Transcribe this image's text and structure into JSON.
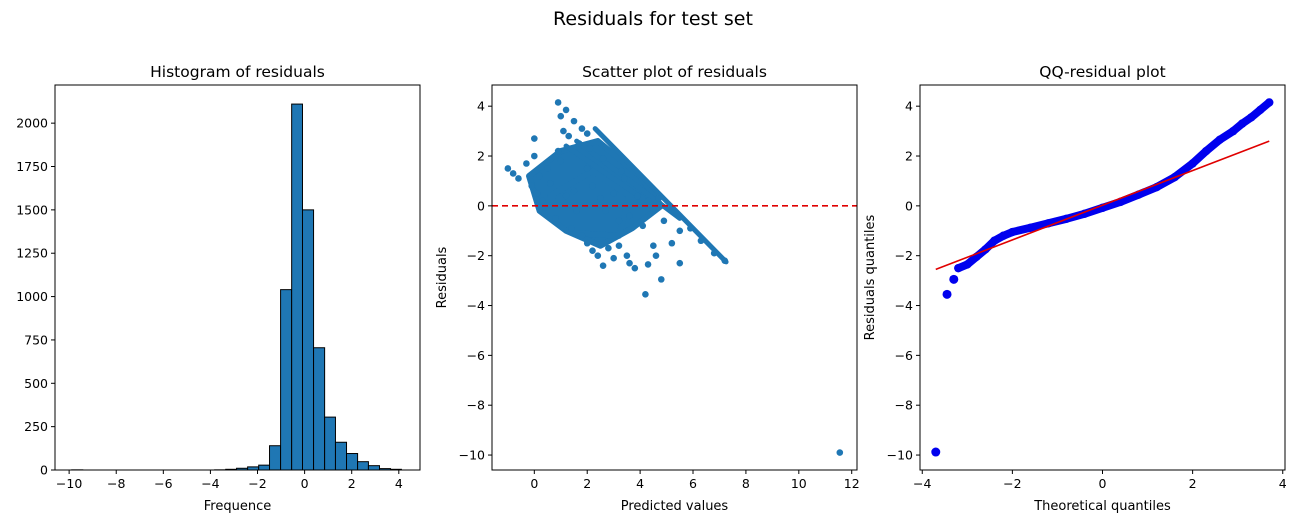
{
  "figure": {
    "suptitle": "Residuals for test set"
  },
  "colors": {
    "bar": "#1f77b4",
    "edge": "#000000",
    "scatter": "#1f77b4",
    "refline": "#e00000",
    "qq_points": "#0000ee"
  },
  "chart_data": [
    {
      "type": "bar",
      "title": "Histogram of residuals",
      "xlabel": "Frequence",
      "ylabel": "",
      "xlim": [
        -10.6,
        4.9
      ],
      "ylim": [
        0,
        2220
      ],
      "xticks": [
        -10,
        -8,
        -6,
        -4,
        -2,
        0,
        2,
        4
      ],
      "yticks": [
        0,
        250,
        500,
        750,
        1000,
        1250,
        1500,
        1750,
        2000
      ],
      "bins": [
        [
          -9.89,
          -9.42,
          1
        ],
        [
          -9.42,
          -8.95,
          0
        ],
        [
          -8.95,
          -8.49,
          0
        ],
        [
          -8.49,
          -8.02,
          0
        ],
        [
          -8.02,
          -7.55,
          0
        ],
        [
          -7.55,
          -7.09,
          0
        ],
        [
          -7.09,
          -6.62,
          0
        ],
        [
          -6.62,
          -6.15,
          0
        ],
        [
          -6.15,
          -5.69,
          0
        ],
        [
          -5.69,
          -5.22,
          0
        ],
        [
          -5.22,
          -4.75,
          0
        ],
        [
          -4.75,
          -4.29,
          0
        ],
        [
          -4.29,
          -3.82,
          0
        ],
        [
          -3.82,
          -3.35,
          1
        ],
        [
          -3.35,
          -2.89,
          4
        ],
        [
          -2.89,
          -2.42,
          10
        ],
        [
          -2.42,
          -1.95,
          18
        ],
        [
          -1.95,
          -1.49,
          28
        ],
        [
          -1.49,
          -1.02,
          140
        ],
        [
          -1.02,
          -0.55,
          1040
        ],
        [
          -0.55,
          -0.09,
          2110
        ],
        [
          -0.09,
          0.38,
          1500
        ],
        [
          0.38,
          0.85,
          705
        ],
        [
          0.85,
          1.31,
          305
        ],
        [
          1.31,
          1.78,
          160
        ],
        [
          1.78,
          2.25,
          95
        ],
        [
          2.25,
          2.71,
          48
        ],
        [
          2.71,
          3.18,
          25
        ],
        [
          3.18,
          3.65,
          8
        ],
        [
          3.65,
          4.11,
          4
        ]
      ]
    },
    {
      "type": "scatter",
      "title": "Scatter plot of residuals",
      "xlabel": "Predicted values",
      "ylabel": "Residuals",
      "xlim": [
        -1.6,
        12.2
      ],
      "ylim": [
        -10.6,
        4.85
      ],
      "xticks": [
        0,
        2,
        4,
        6,
        8,
        10,
        12
      ],
      "yticks": [
        -10,
        -8,
        -6,
        -4,
        -2,
        0,
        2,
        4
      ],
      "hline": 0,
      "points": [
        [
          -1.0,
          1.5
        ],
        [
          -0.8,
          1.3
        ],
        [
          -0.6,
          1.1
        ],
        [
          -0.3,
          1.7
        ],
        [
          -0.1,
          0.8
        ],
        [
          0.1,
          0.5
        ],
        [
          0.2,
          1.2
        ],
        [
          0.0,
          2.0
        ],
        [
          0.0,
          2.7
        ],
        [
          0.3,
          0.2
        ],
        [
          0.4,
          -0.3
        ],
        [
          0.5,
          1.5
        ],
        [
          0.6,
          0.9
        ],
        [
          0.8,
          -0.5
        ],
        [
          0.9,
          2.2
        ],
        [
          1.0,
          1.8
        ],
        [
          0.9,
          4.15
        ],
        [
          1.0,
          3.6
        ],
        [
          1.1,
          3.0
        ],
        [
          1.2,
          3.85
        ],
        [
          1.3,
          2.8
        ],
        [
          1.5,
          3.4
        ],
        [
          1.7,
          2.5
        ],
        [
          1.8,
          3.1
        ],
        [
          2.0,
          2.9
        ],
        [
          1.5,
          0.6
        ],
        [
          1.6,
          -0.2
        ],
        [
          1.8,
          -1.2
        ],
        [
          2.0,
          -1.5
        ],
        [
          2.2,
          -1.8
        ],
        [
          2.4,
          -2.0
        ],
        [
          2.6,
          -2.4
        ],
        [
          2.8,
          -1.7
        ],
        [
          3.0,
          -2.1
        ],
        [
          3.2,
          -1.6
        ],
        [
          3.5,
          -2.0
        ],
        [
          3.6,
          -2.3
        ],
        [
          3.8,
          -2.5
        ],
        [
          4.2,
          -3.55
        ],
        [
          4.3,
          -2.35
        ],
        [
          4.5,
          -1.6
        ],
        [
          4.6,
          -2.0
        ],
        [
          4.8,
          -2.95
        ],
        [
          5.2,
          -1.5
        ],
        [
          5.5,
          -1.0
        ],
        [
          5.5,
          -2.3
        ],
        [
          5.9,
          -0.9
        ],
        [
          6.3,
          -1.4
        ],
        [
          6.8,
          -1.9
        ],
        [
          7.2,
          -2.2
        ],
        [
          11.55,
          -9.9
        ],
        [
          2.0,
          1.5
        ],
        [
          2.2,
          0.8
        ],
        [
          2.5,
          0.3
        ],
        [
          2.7,
          -0.2
        ],
        [
          3.0,
          0.5
        ],
        [
          3.2,
          -0.6
        ],
        [
          3.4,
          1.1
        ],
        [
          3.6,
          -0.4
        ],
        [
          3.9,
          0.4
        ],
        [
          4.1,
          -0.8
        ],
        [
          4.3,
          0.2
        ],
        [
          4.5,
          -0.1
        ],
        [
          4.7,
          0.3
        ],
        [
          4.9,
          -0.6
        ],
        [
          1.2,
          0.4
        ],
        [
          1.4,
          -0.9
        ],
        [
          2.1,
          2.3
        ],
        [
          2.6,
          1.9
        ],
        [
          3.3,
          1.4
        ]
      ],
      "ridges": [
        [
          [
            2.3,
            3.1
          ],
          [
            7.25,
            -2.25
          ]
        ],
        [
          [
            1.6,
            2.6
          ],
          [
            5.5,
            -0.5
          ]
        ],
        [
          [
            1.2,
            2.4
          ],
          [
            4.5,
            0.0
          ]
        ]
      ],
      "core_clusters": [
        [
          [
            -0.2,
            1.2
          ],
          [
            1.0,
            2.2
          ],
          [
            2.4,
            2.6
          ],
          [
            4.0,
            1.2
          ],
          [
            4.8,
            0.0
          ],
          [
            3.7,
            -0.9
          ],
          [
            2.5,
            -1.6
          ],
          [
            1.2,
            -1.0
          ],
          [
            0.2,
            -0.2
          ]
        ],
        [
          [
            0.6,
            0.4
          ],
          [
            2.2,
            1.4
          ],
          [
            3.6,
            0.4
          ],
          [
            3.2,
            -1.2
          ],
          [
            1.6,
            -1.1
          ]
        ]
      ]
    },
    {
      "type": "scatter",
      "title": "QQ-residual plot",
      "xlabel": "Theoretical quantiles",
      "ylabel": "Residuals quantiles",
      "xlim": [
        -4.05,
        4.05
      ],
      "ylim": [
        -10.6,
        4.85
      ],
      "xticks": [
        -4,
        -2,
        0,
        2,
        4
      ],
      "yticks": [
        -10,
        -8,
        -6,
        -4,
        -2,
        0,
        2,
        4
      ],
      "fit_line": [
        [
          -3.7,
          -2.55
        ],
        [
          3.7,
          2.6
        ]
      ],
      "outliers": [
        [
          -3.7,
          -9.88
        ],
        [
          -3.45,
          -3.55
        ],
        [
          -3.3,
          -2.95
        ]
      ],
      "quantiles": [
        [
          -3.2,
          -2.5
        ],
        [
          -3.0,
          -2.35
        ],
        [
          -2.8,
          -2.05
        ],
        [
          -2.6,
          -1.75
        ],
        [
          -2.4,
          -1.4
        ],
        [
          -2.2,
          -1.2
        ],
        [
          -2.0,
          -1.05
        ],
        [
          -1.6,
          -0.88
        ],
        [
          -1.2,
          -0.7
        ],
        [
          -0.8,
          -0.52
        ],
        [
          -0.4,
          -0.32
        ],
        [
          0.0,
          -0.08
        ],
        [
          0.4,
          0.16
        ],
        [
          0.8,
          0.45
        ],
        [
          1.2,
          0.75
        ],
        [
          1.6,
          1.15
        ],
        [
          2.0,
          1.7
        ],
        [
          2.3,
          2.2
        ],
        [
          2.6,
          2.65
        ],
        [
          2.9,
          3.0
        ],
        [
          3.1,
          3.3
        ],
        [
          3.3,
          3.55
        ],
        [
          3.5,
          3.85
        ],
        [
          3.7,
          4.15
        ]
      ]
    }
  ]
}
